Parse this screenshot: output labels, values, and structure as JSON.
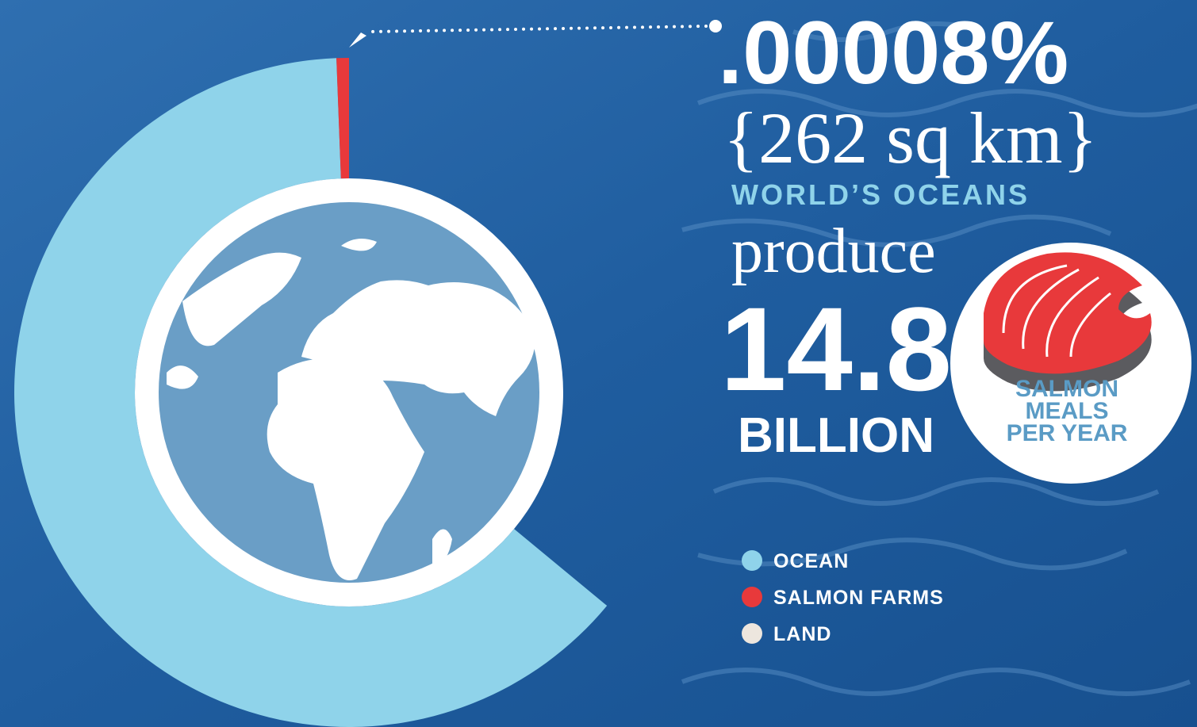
{
  "chart_data": {
    "type": "donut",
    "categories": [
      "OCEAN",
      "SALMON FARMS",
      "LAND"
    ],
    "values": [
      63.4,
      0.6,
      36
    ],
    "colors": [
      "#8fd3ea",
      "#e8393b",
      "#ede6de"
    ],
    "headline": ".00008%",
    "area": "{262 sq km}",
    "subject": "WORLD’S OCEANS",
    "verb": "produce",
    "amount": "14.8",
    "unit": "BILLION",
    "caption": [
      "SALMON",
      "MEALS",
      "PER YEAR"
    ]
  }
}
